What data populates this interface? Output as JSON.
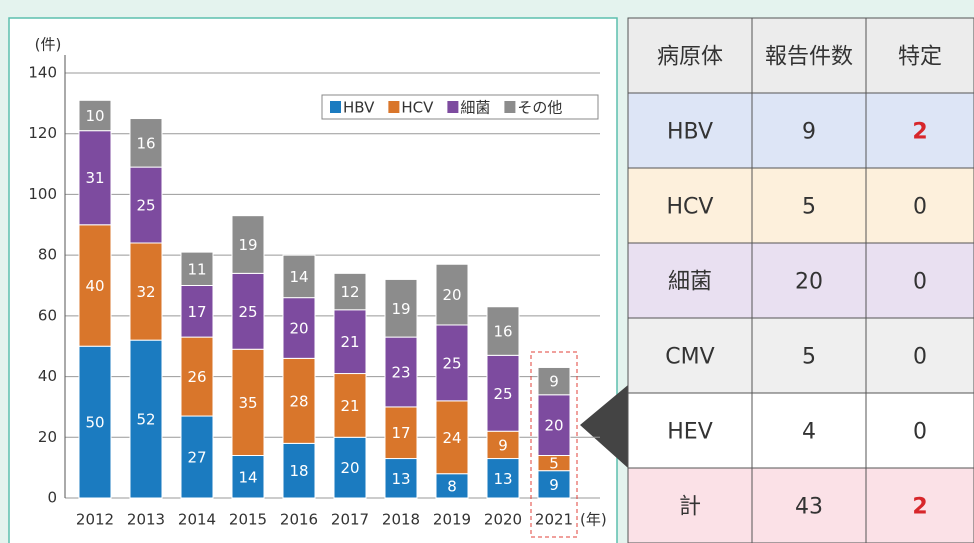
{
  "chart_data": {
    "type": "bar",
    "stacked": true,
    "y_label": "(件)",
    "x_label": "(年)",
    "categories": [
      "2012",
      "2013",
      "2014",
      "2015",
      "2016",
      "2017",
      "2018",
      "2019",
      "2020",
      "2021"
    ],
    "series": [
      {
        "name": "HBV",
        "color": "#1b7bc0",
        "values": [
          50,
          52,
          27,
          14,
          18,
          20,
          13,
          8,
          13,
          9
        ]
      },
      {
        "name": "HCV",
        "color": "#d9762b",
        "values": [
          40,
          32,
          26,
          35,
          28,
          21,
          17,
          24,
          9,
          5
        ]
      },
      {
        "name": "細菌",
        "color": "#7d4b9f",
        "values": [
          31,
          25,
          17,
          25,
          20,
          21,
          23,
          25,
          25,
          20
        ]
      },
      {
        "name": "その他",
        "color": "#8c8c8c",
        "values": [
          10,
          16,
          11,
          19,
          14,
          12,
          19,
          20,
          16,
          9
        ]
      }
    ],
    "ylim": [
      0,
      140
    ],
    "yticks": [
      0,
      20,
      40,
      60,
      80,
      100,
      120,
      140
    ],
    "grid": true,
    "legend": "top-right"
  },
  "table": {
    "header": [
      "病原体",
      "報告件数",
      "特定"
    ],
    "rows": [
      [
        "HBV",
        9,
        2
      ],
      [
        "HCV",
        5,
        0
      ],
      [
        "細菌",
        20,
        0
      ],
      [
        "CMV",
        5,
        0
      ],
      [
        "HEV",
        4,
        0
      ],
      [
        "計",
        43,
        2
      ]
    ]
  }
}
